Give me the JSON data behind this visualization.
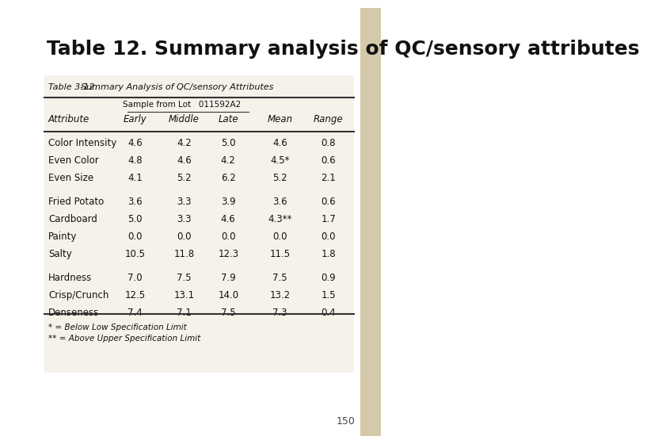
{
  "title": "Table 12. Summary analysis of QC/sensory attributes",
  "page_number": "150",
  "bg_color": "#ffffff",
  "right_bar_color": "#d4c9a8",
  "table_inner_bg": "#f5f2ea",
  "table_title": "Table 3-12.",
  "table_subtitle": "Summary Analysis of QC/sensory Attributes",
  "sample_label": "Sample from Lot   011592A2",
  "col_headers": [
    "Attribute",
    "Early",
    "Middle",
    "Late",
    "Mean",
    "Range"
  ],
  "rows": [
    [
      "Color Intensity",
      "4.6",
      "4.2",
      "5.0",
      "4.6",
      "0.8"
    ],
    [
      "Even Color",
      "4.8",
      "4.6",
      "4.2",
      "4.5*",
      "0.6"
    ],
    [
      "Even Size",
      "4.1",
      "5.2",
      "6.2",
      "5.2",
      "2.1"
    ],
    [
      "",
      "",
      "",
      "",
      "",
      ""
    ],
    [
      "Fried Potato",
      "3.6",
      "3.3",
      "3.9",
      "3.6",
      "0.6"
    ],
    [
      "Cardboard",
      "5.0",
      "3.3",
      "4.6",
      "4.3**",
      "1.7"
    ],
    [
      "Painty",
      "0.0",
      "0.0",
      "0.0",
      "0.0",
      "0.0"
    ],
    [
      "Salty",
      "10.5",
      "11.8",
      "12.3",
      "11.5",
      "1.8"
    ],
    [
      "",
      "",
      "",
      "",
      "",
      ""
    ],
    [
      "Hardness",
      "7.0",
      "7.5",
      "7.9",
      "7.5",
      "0.9"
    ],
    [
      "Crisp/Crunch",
      "12.5",
      "13.1",
      "14.0",
      "13.2",
      "1.5"
    ],
    [
      "Denseness",
      "7.4",
      "7.1",
      "7.5",
      "7.3",
      "0.4"
    ]
  ],
  "footnotes": [
    "* = Below Low Specification Limit",
    "** = Above Upper Specification Limit"
  ],
  "title_fontsize": 18,
  "title_color": "#111111",
  "table_fontsize": 8.5,
  "header_fontsize": 8.5,
  "small_fontsize": 7.5
}
